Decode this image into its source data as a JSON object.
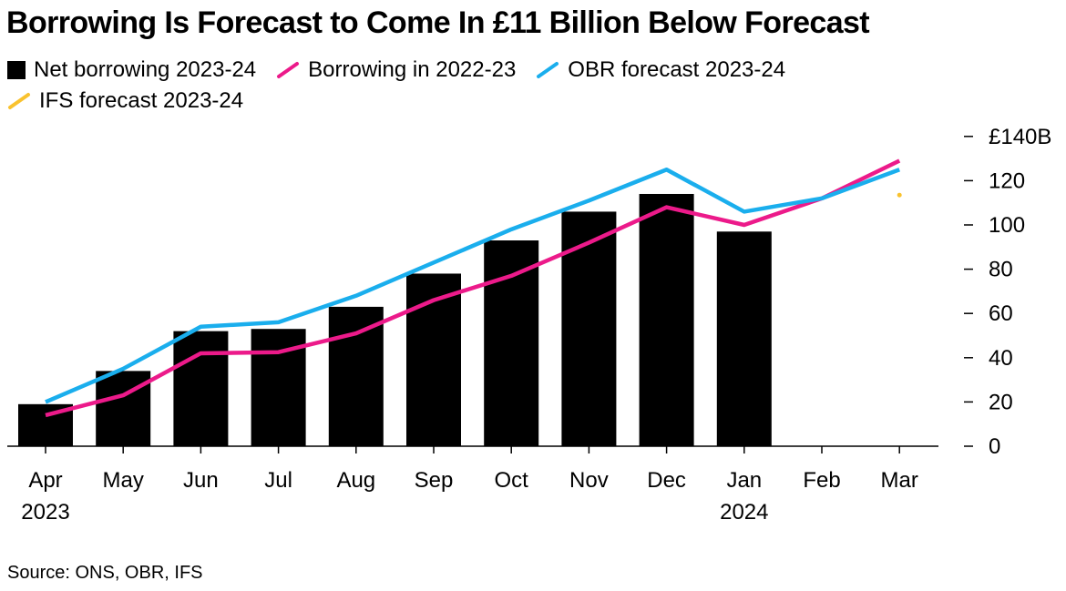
{
  "title": "Borrowing Is Forecast to Come In £11 Billion Below Forecast",
  "source": "Source: ONS, OBR, IFS",
  "legend": [
    {
      "label": "Net borrowing 2023-24",
      "kind": "square",
      "color": "#000000"
    },
    {
      "label": "Borrowing in 2022-23",
      "kind": "line",
      "color": "#ec1a8a"
    },
    {
      "label": "OBR forecast 2023-24",
      "kind": "line",
      "color": "#1aaeed"
    },
    {
      "label": "IFS forecast 2023-24",
      "kind": "line",
      "color": "#f9c22e"
    }
  ],
  "chart_data": {
    "type": "bar",
    "categories": [
      "Apr",
      "May",
      "Jun",
      "Jul",
      "Aug",
      "Sep",
      "Oct",
      "Nov",
      "Dec",
      "Jan",
      "Feb",
      "Mar"
    ],
    "year_labels": {
      "0": "2023",
      "9": "2024"
    },
    "ylim": [
      0,
      140
    ],
    "yticks": [
      0,
      20,
      40,
      60,
      80,
      100,
      120,
      140
    ],
    "ytick_labels": [
      "0",
      "20",
      "40",
      "60",
      "80",
      "100",
      "120",
      "£140B"
    ],
    "bars": {
      "name": "Net borrowing 2023-24",
      "color": "#000000",
      "values": [
        19,
        34,
        52,
        53,
        63,
        78,
        93,
        106,
        114,
        97,
        null,
        null
      ]
    },
    "series": [
      {
        "name": "Borrowing in 2022-23",
        "color": "#ec1a8a",
        "values": [
          14,
          23,
          42,
          42.5,
          51,
          66,
          77,
          92,
          108,
          100,
          112,
          129
        ]
      },
      {
        "name": "OBR forecast 2023-24",
        "color": "#1aaeed",
        "values": [
          20,
          35,
          54,
          56,
          68,
          83,
          98,
          111,
          125,
          106,
          112,
          125
        ]
      }
    ],
    "points": [
      {
        "name": "IFS forecast 2023-24",
        "color": "#f9c22e",
        "index": 11,
        "value": 113.5
      }
    ]
  }
}
